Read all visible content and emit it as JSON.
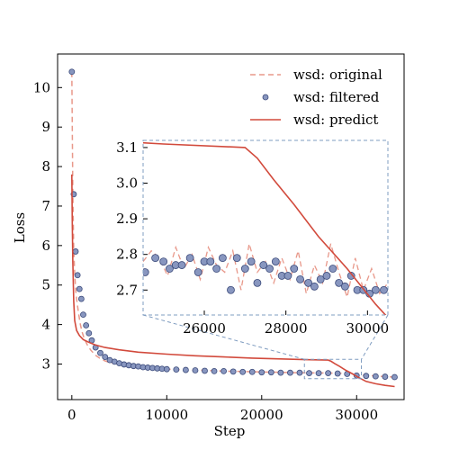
{
  "chart_data": {
    "type": "line",
    "xlabel": "Step",
    "ylabel": "Loss",
    "xlim": [
      -1500,
      35000
    ],
    "ylim": [
      2.1,
      10.85
    ],
    "xticks": [
      0,
      10000,
      20000,
      30000
    ],
    "xtick_labels": [
      "0",
      "10000",
      "20000",
      "30000"
    ],
    "yticks": [
      3,
      4,
      5,
      6,
      7,
      8,
      9,
      10
    ],
    "ytick_labels": [
      "3",
      "4",
      "5",
      "6",
      "7",
      "8",
      "9",
      "10"
    ],
    "legend_position": "upper-right",
    "series": [
      {
        "name": "wsd: original",
        "style": "dashed",
        "color": "#e8988a",
        "x": [
          0,
          100,
          200,
          300,
          400,
          500,
          700,
          900,
          1100,
          1300,
          1600,
          2000,
          2500,
          3000,
          3500,
          4000,
          5000,
          6000,
          7000,
          8000,
          9000,
          10000,
          12000,
          14000,
          16000,
          18000,
          20000,
          22000,
          24000,
          25000,
          26000,
          27000,
          28000,
          29000,
          30000,
          31000,
          32000,
          33000,
          34000
        ],
        "y": [
          10.4,
          7.4,
          5.9,
          5.3,
          4.9,
          4.65,
          4.3,
          4.0,
          3.8,
          3.65,
          3.5,
          3.35,
          3.22,
          3.14,
          3.08,
          3.04,
          3.0,
          2.96,
          2.93,
          2.91,
          2.89,
          2.87,
          2.85,
          2.84,
          2.82,
          2.81,
          2.8,
          2.79,
          2.78,
          2.78,
          2.77,
          2.78,
          2.76,
          2.78,
          2.72,
          2.71,
          2.7,
          2.68,
          2.67
        ]
      },
      {
        "name": "wsd: filtered",
        "style": "markers",
        "color": "#8896bf",
        "x": [
          0,
          200,
          400,
          600,
          800,
          1000,
          1200,
          1500,
          1800,
          2100,
          2500,
          3000,
          3500,
          4000,
          4500,
          5000,
          5500,
          6000,
          6500,
          7000,
          7500,
          8000,
          8500,
          9000,
          9500,
          10000,
          11000,
          12000,
          13000,
          14000,
          15000,
          16000,
          17000,
          18000,
          19000,
          20000,
          21000,
          22000,
          23000,
          24000,
          25000,
          26000,
          27000,
          28000,
          29000,
          30000,
          31000,
          32000,
          33000,
          34000
        ],
        "y": [
          10.4,
          7.3,
          5.85,
          5.25,
          4.9,
          4.65,
          4.25,
          3.98,
          3.78,
          3.6,
          3.42,
          3.28,
          3.18,
          3.1,
          3.06,
          3.02,
          2.99,
          2.97,
          2.95,
          2.94,
          2.92,
          2.91,
          2.9,
          2.89,
          2.88,
          2.87,
          2.86,
          2.85,
          2.84,
          2.83,
          2.82,
          2.82,
          2.81,
          2.8,
          2.8,
          2.79,
          2.79,
          2.78,
          2.78,
          2.78,
          2.77,
          2.77,
          2.77,
          2.76,
          2.75,
          2.71,
          2.7,
          2.69,
          2.68,
          2.67
        ]
      },
      {
        "name": "wsd: predict",
        "style": "solid",
        "color": "#d24a3c",
        "x": [
          0,
          50,
          100,
          200,
          300,
          500,
          800,
          1200,
          1800,
          2500,
          3500,
          5000,
          7000,
          10000,
          13000,
          16000,
          19000,
          22000,
          25000,
          27000,
          27300,
          27700,
          28200,
          28800,
          29500,
          30200,
          31000,
          32000,
          33000,
          34000
        ],
        "y": [
          7.8,
          6.6,
          5.6,
          4.6,
          4.1,
          3.85,
          3.72,
          3.62,
          3.55,
          3.48,
          3.42,
          3.36,
          3.3,
          3.25,
          3.21,
          3.18,
          3.15,
          3.13,
          3.11,
          3.1,
          3.07,
          3.01,
          2.94,
          2.85,
          2.76,
          2.66,
          2.56,
          2.5,
          2.46,
          2.43
        ]
      }
    ],
    "inset": {
      "xlim": [
        24500,
        30500
      ],
      "ylim": [
        2.63,
        3.12
      ],
      "xticks": [
        26000,
        28000,
        30000
      ],
      "xtick_labels": [
        "26000",
        "28000",
        "30000"
      ],
      "yticks": [
        2.7,
        2.8,
        2.9,
        3.0,
        3.1
      ],
      "ytick_labels": [
        "2.7",
        "2.8",
        "2.9",
        "3.0",
        "3.1"
      ],
      "original": {
        "x": [
          24500,
          24700,
          24900,
          25100,
          25300,
          25500,
          25700,
          25900,
          26100,
          26300,
          26500,
          26700,
          26900,
          27100,
          27300,
          27500,
          27700,
          27900,
          28100,
          28300,
          28500,
          28700,
          28900,
          29100,
          29300,
          29500,
          29700,
          29900,
          30100,
          30300,
          30500
        ],
        "y": [
          2.78,
          2.81,
          2.79,
          2.74,
          2.82,
          2.76,
          2.8,
          2.73,
          2.82,
          2.77,
          2.75,
          2.81,
          2.7,
          2.83,
          2.75,
          2.78,
          2.72,
          2.79,
          2.73,
          2.81,
          2.69,
          2.77,
          2.72,
          2.83,
          2.75,
          2.68,
          2.79,
          2.7,
          2.76,
          2.69,
          2.72
        ]
      },
      "filtered": {
        "x": [
          24550,
          24800,
          25000,
          25150,
          25300,
          25450,
          25650,
          25850,
          26000,
          26150,
          26300,
          26450,
          26650,
          26800,
          27000,
          27150,
          27300,
          27450,
          27600,
          27750,
          27900,
          28050,
          28200,
          28350,
          28550,
          28700,
          28850,
          29000,
          29150,
          29300,
          29450,
          29600,
          29750,
          29900,
          30050,
          30200,
          30400
        ],
        "y": [
          2.75,
          2.79,
          2.78,
          2.76,
          2.77,
          2.77,
          2.79,
          2.75,
          2.78,
          2.78,
          2.76,
          2.79,
          2.7,
          2.79,
          2.76,
          2.78,
          2.72,
          2.77,
          2.76,
          2.78,
          2.74,
          2.74,
          2.76,
          2.73,
          2.72,
          2.71,
          2.73,
          2.74,
          2.76,
          2.72,
          2.71,
          2.74,
          2.7,
          2.7,
          2.69,
          2.7,
          2.7
        ]
      }
    }
  }
}
